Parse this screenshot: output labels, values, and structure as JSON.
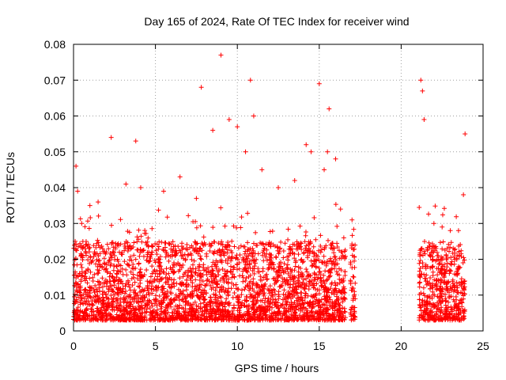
{
  "chart_data": {
    "type": "scatter",
    "title": "Day 165 of 2024, Rate Of TEC Index for receiver wind",
    "xlabel": "GPS time / hours",
    "ylabel": "ROTI / TECUs",
    "xlim": [
      0,
      25
    ],
    "ylim": [
      0,
      0.08
    ],
    "x_ticks": [
      "0",
      "5",
      "10",
      "15",
      "20",
      "25"
    ],
    "y_ticks": [
      "0",
      "0.01",
      "0.02",
      "0.03",
      "0.04",
      "0.05",
      "0.06",
      "0.07",
      "0.08"
    ],
    "grid": true,
    "marker": "+",
    "color": "#ff0000",
    "series": [
      {
        "x": [
          0.1,
          0.15,
          0.25,
          0.5,
          1.0,
          1.5,
          2.3,
          3.2,
          3.8,
          4.1,
          5.5,
          6.5,
          7.5,
          7.8,
          8.5,
          9.0,
          9.5,
          10.0,
          10.5,
          10.8,
          11.0,
          11.5,
          12.5,
          13.5,
          14.2,
          14.5,
          15.0,
          15.3,
          15.5,
          15.6,
          16.0,
          16.3,
          17.0,
          21.2,
          21.3,
          21.4,
          22.0,
          22.5,
          23.0,
          23.5,
          23.8,
          23.9
        ],
        "y": [
          0.025,
          0.046,
          0.039,
          0.03,
          0.035,
          0.036,
          0.054,
          0.041,
          0.053,
          0.04,
          0.039,
          0.043,
          0.037,
          0.068,
          0.056,
          0.077,
          0.059,
          0.057,
          0.05,
          0.07,
          0.06,
          0.045,
          0.04,
          0.042,
          0.052,
          0.05,
          0.069,
          0.045,
          0.05,
          0.062,
          0.048,
          0.034,
          0.031,
          0.07,
          0.067,
          0.059,
          0.03,
          0.029,
          0.028,
          0.028,
          0.038,
          0.055
        ],
        "coverage": [
          [
            0.0,
            16.6
          ],
          [
            16.9,
            17.2
          ],
          [
            21.1,
            23.9
          ]
        ],
        "typical_range": [
          0.003,
          0.025
        ]
      }
    ]
  }
}
